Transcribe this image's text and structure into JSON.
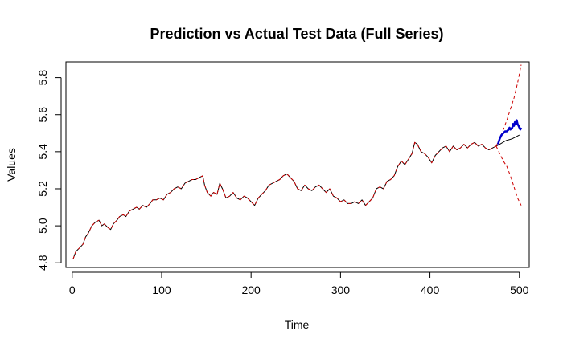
{
  "chart_data": {
    "type": "line",
    "title": "Prediction vs Actual Test Data (Full Series)",
    "xlabel": "Time",
    "ylabel": "Values",
    "xlim": [
      -7,
      511
    ],
    "ylim": [
      4.775,
      5.885
    ],
    "x_ticks": [
      0,
      100,
      200,
      300,
      400,
      500
    ],
    "x_tick_labels": [
      "0",
      "100",
      "200",
      "300",
      "400",
      "500"
    ],
    "y_ticks": [
      4.8,
      5.0,
      5.2,
      5.4,
      5.6,
      5.8
    ],
    "y_tick_labels": [
      "4.8",
      "5.0",
      "5.2",
      "5.4",
      "5.6",
      "5.8"
    ],
    "grid": false,
    "legend": "none",
    "colors": {
      "actual": "#000000",
      "fitted_and_bounds": "#cc0000",
      "test_actual": "#0000cc"
    },
    "series": [
      {
        "role": "actual",
        "style": "solid",
        "color": "#000000",
        "points": [
          [
            1,
            4.82
          ],
          [
            4,
            4.86
          ],
          [
            8,
            4.88
          ],
          [
            12,
            4.9
          ],
          [
            15,
            4.94
          ],
          [
            18,
            4.96
          ],
          [
            22,
            5.0
          ],
          [
            26,
            5.02
          ],
          [
            30,
            5.03
          ],
          [
            33,
            5.0
          ],
          [
            36,
            5.01
          ],
          [
            40,
            4.99
          ],
          [
            43,
            4.98
          ],
          [
            46,
            5.01
          ],
          [
            50,
            5.03
          ],
          [
            53,
            5.05
          ],
          [
            57,
            5.06
          ],
          [
            60,
            5.05
          ],
          [
            64,
            5.08
          ],
          [
            68,
            5.09
          ],
          [
            72,
            5.1
          ],
          [
            75,
            5.09
          ],
          [
            79,
            5.11
          ],
          [
            83,
            5.1
          ],
          [
            87,
            5.12
          ],
          [
            90,
            5.14
          ],
          [
            94,
            5.14
          ],
          [
            98,
            5.15
          ],
          [
            102,
            5.14
          ],
          [
            106,
            5.17
          ],
          [
            110,
            5.18
          ],
          [
            114,
            5.2
          ],
          [
            118,
            5.21
          ],
          [
            122,
            5.2
          ],
          [
            126,
            5.23
          ],
          [
            130,
            5.24
          ],
          [
            134,
            5.25
          ],
          [
            138,
            5.25
          ],
          [
            142,
            5.26
          ],
          [
            146,
            5.27
          ],
          [
            148,
            5.22
          ],
          [
            151,
            5.18
          ],
          [
            155,
            5.16
          ],
          [
            158,
            5.18
          ],
          [
            162,
            5.17
          ],
          [
            165,
            5.23
          ],
          [
            168,
            5.2
          ],
          [
            172,
            5.15
          ],
          [
            176,
            5.16
          ],
          [
            180,
            5.18
          ],
          [
            184,
            5.15
          ],
          [
            188,
            5.14
          ],
          [
            192,
            5.16
          ],
          [
            196,
            5.15
          ],
          [
            200,
            5.13
          ],
          [
            204,
            5.11
          ],
          [
            208,
            5.15
          ],
          [
            212,
            5.17
          ],
          [
            216,
            5.19
          ],
          [
            220,
            5.22
          ],
          [
            224,
            5.23
          ],
          [
            228,
            5.24
          ],
          [
            232,
            5.25
          ],
          [
            236,
            5.27
          ],
          [
            240,
            5.28
          ],
          [
            244,
            5.26
          ],
          [
            248,
            5.24
          ],
          [
            252,
            5.2
          ],
          [
            256,
            5.19
          ],
          [
            260,
            5.22
          ],
          [
            264,
            5.2
          ],
          [
            268,
            5.19
          ],
          [
            272,
            5.21
          ],
          [
            276,
            5.22
          ],
          [
            280,
            5.2
          ],
          [
            284,
            5.18
          ],
          [
            288,
            5.2
          ],
          [
            292,
            5.16
          ],
          [
            296,
            5.15
          ],
          [
            300,
            5.13
          ],
          [
            304,
            5.14
          ],
          [
            308,
            5.12
          ],
          [
            312,
            5.12
          ],
          [
            316,
            5.13
          ],
          [
            320,
            5.12
          ],
          [
            324,
            5.14
          ],
          [
            328,
            5.11
          ],
          [
            332,
            5.13
          ],
          [
            336,
            5.15
          ],
          [
            340,
            5.2
          ],
          [
            344,
            5.21
          ],
          [
            348,
            5.2
          ],
          [
            352,
            5.24
          ],
          [
            356,
            5.25
          ],
          [
            360,
            5.27
          ],
          [
            364,
            5.32
          ],
          [
            368,
            5.35
          ],
          [
            372,
            5.33
          ],
          [
            376,
            5.36
          ],
          [
            380,
            5.39
          ],
          [
            383,
            5.45
          ],
          [
            386,
            5.44
          ],
          [
            390,
            5.4
          ],
          [
            394,
            5.39
          ],
          [
            398,
            5.37
          ],
          [
            402,
            5.34
          ],
          [
            406,
            5.38
          ],
          [
            410,
            5.4
          ],
          [
            414,
            5.42
          ],
          [
            418,
            5.43
          ],
          [
            422,
            5.4
          ],
          [
            426,
            5.43
          ],
          [
            430,
            5.41
          ],
          [
            434,
            5.42
          ],
          [
            438,
            5.44
          ],
          [
            442,
            5.42
          ],
          [
            446,
            5.44
          ],
          [
            450,
            5.45
          ],
          [
            454,
            5.43
          ],
          [
            458,
            5.44
          ],
          [
            462,
            5.42
          ],
          [
            466,
            5.41
          ],
          [
            470,
            5.42
          ],
          [
            474,
            5.43
          ],
          [
            478,
            5.44
          ],
          [
            485,
            5.46
          ],
          [
            492,
            5.47
          ],
          [
            500,
            5.49
          ]
        ]
      },
      {
        "role": "fitted",
        "style": "dashed",
        "color": "#cc0000",
        "points": [
          [
            1,
            4.82
          ],
          [
            4,
            4.86
          ],
          [
            8,
            4.88
          ],
          [
            12,
            4.9
          ],
          [
            15,
            4.94
          ],
          [
            18,
            4.96
          ],
          [
            22,
            5.0
          ],
          [
            26,
            5.02
          ],
          [
            30,
            5.03
          ],
          [
            33,
            5.0
          ],
          [
            36,
            5.01
          ],
          [
            40,
            4.99
          ],
          [
            43,
            4.98
          ],
          [
            46,
            5.01
          ],
          [
            50,
            5.03
          ],
          [
            53,
            5.05
          ],
          [
            57,
            5.06
          ],
          [
            60,
            5.05
          ],
          [
            64,
            5.08
          ],
          [
            68,
            5.09
          ],
          [
            72,
            5.1
          ],
          [
            75,
            5.09
          ],
          [
            79,
            5.11
          ],
          [
            83,
            5.1
          ],
          [
            87,
            5.12
          ],
          [
            90,
            5.14
          ],
          [
            94,
            5.14
          ],
          [
            98,
            5.15
          ],
          [
            102,
            5.14
          ],
          [
            106,
            5.17
          ],
          [
            110,
            5.18
          ],
          [
            114,
            5.2
          ],
          [
            118,
            5.21
          ],
          [
            122,
            5.2
          ],
          [
            126,
            5.23
          ],
          [
            130,
            5.24
          ],
          [
            134,
            5.25
          ],
          [
            138,
            5.25
          ],
          [
            142,
            5.26
          ],
          [
            146,
            5.27
          ],
          [
            148,
            5.22
          ],
          [
            151,
            5.18
          ],
          [
            155,
            5.16
          ],
          [
            158,
            5.18
          ],
          [
            162,
            5.17
          ],
          [
            165,
            5.23
          ],
          [
            168,
            5.2
          ],
          [
            172,
            5.15
          ],
          [
            176,
            5.16
          ],
          [
            180,
            5.18
          ],
          [
            184,
            5.15
          ],
          [
            188,
            5.14
          ],
          [
            192,
            5.16
          ],
          [
            196,
            5.15
          ],
          [
            200,
            5.13
          ],
          [
            204,
            5.11
          ],
          [
            208,
            5.15
          ],
          [
            212,
            5.17
          ],
          [
            216,
            5.19
          ],
          [
            220,
            5.22
          ],
          [
            224,
            5.23
          ],
          [
            228,
            5.24
          ],
          [
            232,
            5.25
          ],
          [
            236,
            5.27
          ],
          [
            240,
            5.28
          ],
          [
            244,
            5.26
          ],
          [
            248,
            5.24
          ],
          [
            252,
            5.2
          ],
          [
            256,
            5.19
          ],
          [
            260,
            5.22
          ],
          [
            264,
            5.2
          ],
          [
            268,
            5.19
          ],
          [
            272,
            5.21
          ],
          [
            276,
            5.22
          ],
          [
            280,
            5.2
          ],
          [
            284,
            5.18
          ],
          [
            288,
            5.2
          ],
          [
            292,
            5.16
          ],
          [
            296,
            5.15
          ],
          [
            300,
            5.13
          ],
          [
            304,
            5.14
          ],
          [
            308,
            5.12
          ],
          [
            312,
            5.12
          ],
          [
            316,
            5.13
          ],
          [
            320,
            5.12
          ],
          [
            324,
            5.14
          ],
          [
            328,
            5.11
          ],
          [
            332,
            5.13
          ],
          [
            336,
            5.15
          ],
          [
            340,
            5.2
          ],
          [
            344,
            5.21
          ],
          [
            348,
            5.2
          ],
          [
            352,
            5.24
          ],
          [
            356,
            5.25
          ],
          [
            360,
            5.27
          ],
          [
            364,
            5.32
          ],
          [
            368,
            5.35
          ],
          [
            372,
            5.33
          ],
          [
            376,
            5.36
          ],
          [
            380,
            5.39
          ],
          [
            383,
            5.45
          ],
          [
            386,
            5.44
          ],
          [
            390,
            5.4
          ],
          [
            394,
            5.39
          ],
          [
            398,
            5.37
          ],
          [
            402,
            5.34
          ],
          [
            406,
            5.38
          ],
          [
            410,
            5.4
          ],
          [
            414,
            5.42
          ],
          [
            418,
            5.43
          ],
          [
            422,
            5.4
          ],
          [
            426,
            5.43
          ],
          [
            430,
            5.41
          ],
          [
            434,
            5.42
          ],
          [
            438,
            5.44
          ],
          [
            442,
            5.42
          ],
          [
            446,
            5.44
          ],
          [
            450,
            5.45
          ],
          [
            454,
            5.43
          ],
          [
            458,
            5.44
          ],
          [
            462,
            5.42
          ],
          [
            466,
            5.41
          ],
          [
            470,
            5.42
          ],
          [
            474,
            5.43
          ]
        ]
      },
      {
        "role": "upper-bound",
        "style": "dashed",
        "color": "#cc0000",
        "points": [
          [
            474,
            5.43
          ],
          [
            478,
            5.47
          ],
          [
            482,
            5.52
          ],
          [
            486,
            5.57
          ],
          [
            490,
            5.63
          ],
          [
            494,
            5.69
          ],
          [
            498,
            5.77
          ],
          [
            502,
            5.87
          ]
        ]
      },
      {
        "role": "lower-bound",
        "style": "dashed",
        "color": "#cc0000",
        "points": [
          [
            474,
            5.43
          ],
          [
            478,
            5.39
          ],
          [
            482,
            5.35
          ],
          [
            486,
            5.32
          ],
          [
            490,
            5.27
          ],
          [
            494,
            5.21
          ],
          [
            498,
            5.15
          ],
          [
            502,
            5.11
          ]
        ]
      },
      {
        "role": "test-actual",
        "style": "solid-thick",
        "color": "#0000cc",
        "points": [
          [
            476,
            5.44
          ],
          [
            478,
            5.47
          ],
          [
            480,
            5.49
          ],
          [
            482,
            5.5
          ],
          [
            484,
            5.51
          ],
          [
            486,
            5.51
          ],
          [
            488,
            5.52
          ],
          [
            489,
            5.53
          ],
          [
            490,
            5.52
          ],
          [
            492,
            5.53
          ],
          [
            493,
            5.55
          ],
          [
            494,
            5.54
          ],
          [
            495,
            5.56
          ],
          [
            496,
            5.55
          ],
          [
            497,
            5.57
          ],
          [
            498,
            5.55
          ],
          [
            499,
            5.54
          ],
          [
            500,
            5.53
          ],
          [
            501,
            5.52
          ],
          [
            502,
            5.53
          ]
        ]
      }
    ]
  }
}
